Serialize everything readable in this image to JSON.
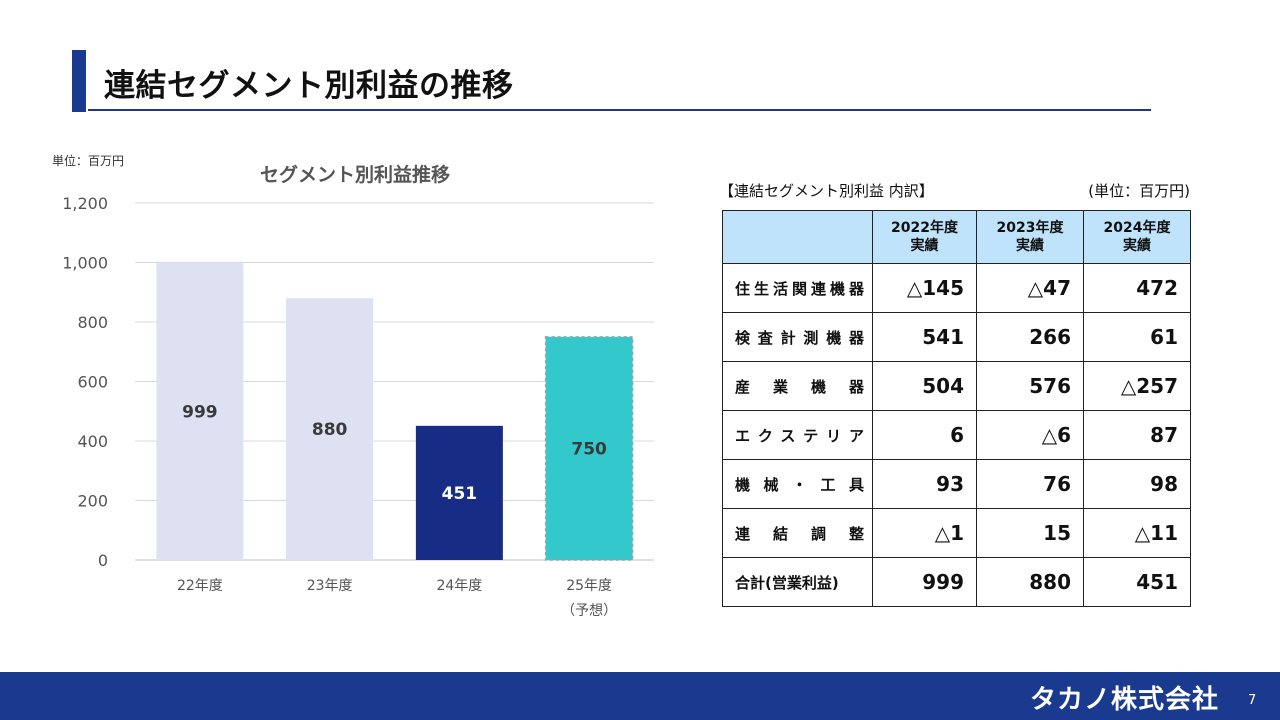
{
  "slide": {
    "title": "連結セグメント別利益の推移",
    "page_number": "7",
    "company": "タカノ株式会社"
  },
  "chart_data": {
    "type": "bar",
    "title": "セグメント別利益推移",
    "unit_label": "単位：百万円",
    "categories": [
      "22年度",
      "23年度",
      "24年度",
      "25年度"
    ],
    "category_notes": [
      "",
      "",
      "",
      "（予想）"
    ],
    "values": [
      999,
      880,
      451,
      750
    ],
    "data_labels": [
      "999",
      "880",
      "451",
      "750"
    ],
    "bar_colors": [
      "#dde1f2",
      "#dde1f2",
      "#172d85",
      "#33c9cc"
    ],
    "label_colors": [
      "#3a3a3a",
      "#3a3a3a",
      "#ffffff",
      "#3a3a3a"
    ],
    "forecast_index": 3,
    "ylim": [
      0,
      1200
    ],
    "yticks": [
      0,
      200,
      400,
      600,
      800,
      1000,
      1200
    ],
    "ytick_labels": [
      "0",
      "200",
      "400",
      "600",
      "800",
      "1,000",
      "1,200"
    ],
    "grid": true,
    "legend": "none"
  },
  "table": {
    "caption": "【連結セグメント別利益 内訳】",
    "unit": "(単位：百万円)",
    "header_color": "#bfe3fb",
    "columns": [
      {
        "year": "2022年度",
        "kind": "実績"
      },
      {
        "year": "2023年度",
        "kind": "実績"
      },
      {
        "year": "2024年度",
        "kind": "実績"
      }
    ],
    "rows": [
      {
        "label": "住生活関連機器",
        "values": [
          "△145",
          "△47",
          "472"
        ]
      },
      {
        "label": "検査計測機器",
        "values": [
          "541",
          "266",
          "61"
        ]
      },
      {
        "label": "産業機器",
        "values": [
          "504",
          "576",
          "△257"
        ]
      },
      {
        "label": "エクステリア",
        "values": [
          "6",
          "△6",
          "87"
        ]
      },
      {
        "label": "機械・工具",
        "values": [
          "93",
          "76",
          "98"
        ]
      },
      {
        "label": "連結調整",
        "values": [
          "△1",
          "15",
          "△11"
        ]
      },
      {
        "label": "合計(営業利益)",
        "values": [
          "999",
          "880",
          "451"
        ]
      }
    ]
  }
}
